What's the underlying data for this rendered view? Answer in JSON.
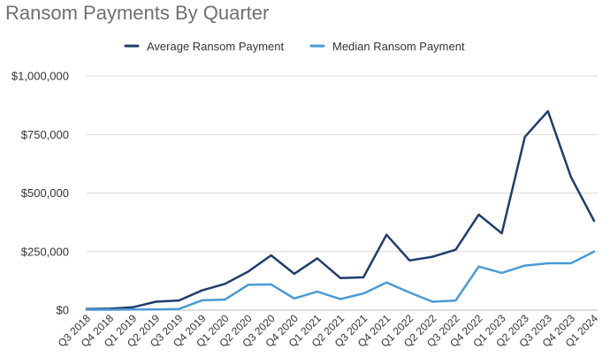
{
  "chart_data": {
    "type": "line",
    "title": "Ransom Payments By Quarter",
    "xlabel": "",
    "ylabel": "",
    "categories": [
      "Q3 2018",
      "Q4 2018",
      "Q1 2019",
      "Q2 2019",
      "Q3 2019",
      "Q4 2019",
      "Q1 2020",
      "Q2 2020",
      "Q3 2020",
      "Q4 2020",
      "Q1 2021",
      "Q2 2021",
      "Q3 2021",
      "Q4 2021",
      "Q1 2022",
      "Q2 2022",
      "Q3 2022",
      "Q4 2022",
      "Q1 2023",
      "Q2 2023",
      "Q3 2023",
      "Q4 2023",
      "Q1 2024"
    ],
    "series": [
      {
        "name": "Average Ransom Payment",
        "color": "#1f3d6b",
        "values": [
          5000,
          6000,
          12000,
          36000,
          41000,
          84000,
          112000,
          164000,
          234000,
          155000,
          221000,
          137000,
          140000,
          322000,
          212000,
          228000,
          258000,
          408000,
          328000,
          740000,
          850000,
          568000,
          381000
        ]
      },
      {
        "name": "Median Ransom Payment",
        "color": "#4a9ad6",
        "values": [
          2000,
          2000,
          3000,
          3000,
          5000,
          42000,
          45000,
          108000,
          110000,
          50000,
          79000,
          47000,
          71000,
          118000,
          75000,
          36000,
          41000,
          186000,
          159000,
          190000,
          200000,
          200000,
          250000
        ]
      }
    ],
    "ylim": [
      0,
      1000000
    ],
    "y_ticks": [
      0,
      250000,
      500000,
      750000,
      1000000
    ],
    "y_tick_labels": [
      "$0",
      "$250,000",
      "$500,000",
      "$750,000",
      "$1,000,000"
    ],
    "grid": "horizontal",
    "legend_position": "top"
  }
}
